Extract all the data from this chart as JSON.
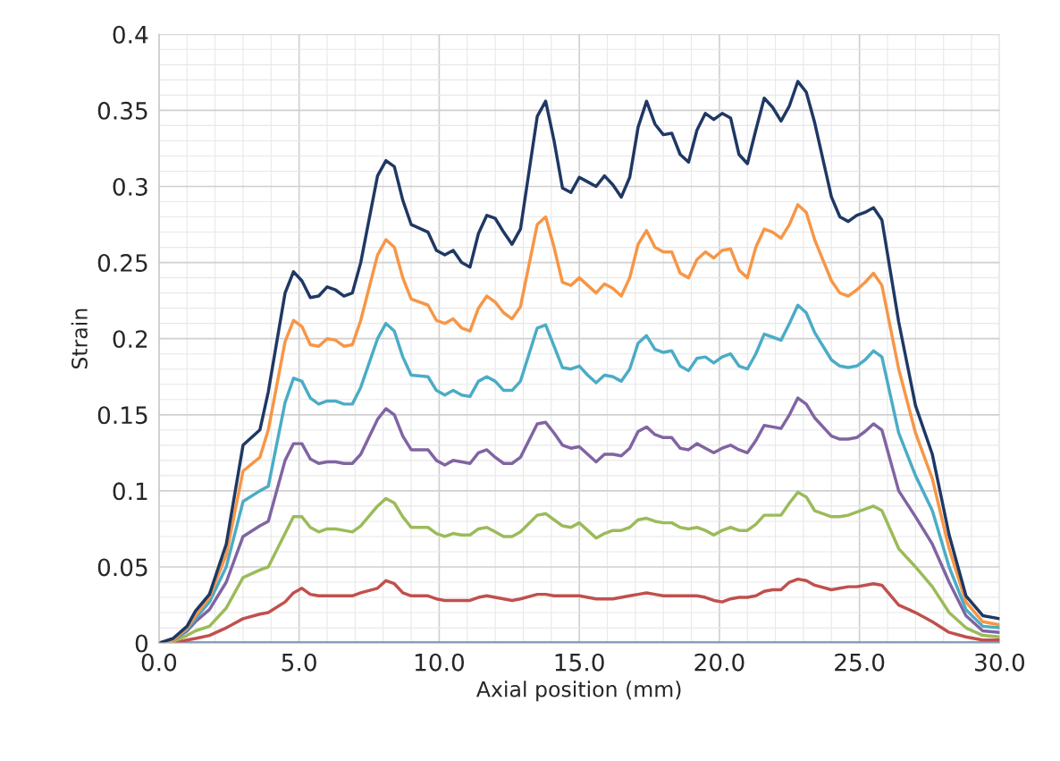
{
  "chart_data": {
    "type": "line",
    "xlabel": "Axial position (mm)",
    "ylabel": "Strain",
    "x": [
      0,
      0.5,
      1.0,
      1.3,
      1.8,
      2.4,
      3.0,
      3.6,
      3.9,
      4.5,
      4.8,
      5.1,
      5.4,
      5.7,
      6.0,
      6.3,
      6.6,
      6.9,
      7.2,
      7.8,
      8.1,
      8.4,
      8.7,
      9.0,
      9.6,
      9.9,
      10.2,
      10.5,
      10.8,
      11.1,
      11.4,
      11.7,
      12.0,
      12.3,
      12.6,
      12.9,
      13.5,
      13.8,
      14.1,
      14.4,
      14.7,
      15.0,
      15.3,
      15.6,
      15.9,
      16.2,
      16.5,
      16.8,
      17.1,
      17.4,
      17.7,
      18.0,
      18.3,
      18.6,
      18.9,
      19.2,
      19.5,
      19.8,
      20.1,
      20.4,
      20.7,
      21.0,
      21.3,
      21.6,
      21.9,
      22.2,
      22.5,
      22.8,
      23.1,
      23.4,
      24.0,
      24.3,
      24.6,
      24.9,
      25.2,
      25.5,
      25.8,
      26.4,
      27.0,
      27.6,
      28.2,
      28.8,
      29.4,
      30.0
    ],
    "series": [
      {
        "color": "#4f81bd",
        "x": [
          0,
          30
        ],
        "values": [
          0,
          0
        ]
      },
      {
        "color": "#c0504d",
        "values": [
          0,
          0,
          0.002,
          0.003,
          0.005,
          0.01,
          0.016,
          0.019,
          0.02,
          0.027,
          0.033,
          0.036,
          0.032,
          0.031,
          0.031,
          0.031,
          0.031,
          0.031,
          0.033,
          0.036,
          0.041,
          0.039,
          0.033,
          0.031,
          0.031,
          0.029,
          0.028,
          0.028,
          0.028,
          0.028,
          0.03,
          0.031,
          0.03,
          0.029,
          0.028,
          0.029,
          0.032,
          0.032,
          0.031,
          0.031,
          0.031,
          0.031,
          0.03,
          0.029,
          0.029,
          0.029,
          0.03,
          0.031,
          0.032,
          0.033,
          0.032,
          0.031,
          0.031,
          0.031,
          0.031,
          0.031,
          0.03,
          0.028,
          0.027,
          0.029,
          0.03,
          0.03,
          0.031,
          0.034,
          0.035,
          0.035,
          0.04,
          0.042,
          0.041,
          0.038,
          0.035,
          0.036,
          0.037,
          0.037,
          0.038,
          0.039,
          0.038,
          0.025,
          0.02,
          0.014,
          0.007,
          0.004,
          0.002,
          0.002
        ]
      },
      {
        "color": "#9bbb59",
        "values": [
          0,
          0.001,
          0.005,
          0.008,
          0.011,
          0.023,
          0.043,
          0.048,
          0.05,
          0.072,
          0.083,
          0.083,
          0.076,
          0.073,
          0.075,
          0.075,
          0.074,
          0.073,
          0.077,
          0.09,
          0.095,
          0.092,
          0.083,
          0.076,
          0.076,
          0.072,
          0.07,
          0.072,
          0.071,
          0.071,
          0.075,
          0.076,
          0.073,
          0.07,
          0.07,
          0.073,
          0.084,
          0.085,
          0.081,
          0.077,
          0.076,
          0.079,
          0.074,
          0.069,
          0.072,
          0.074,
          0.074,
          0.076,
          0.081,
          0.082,
          0.08,
          0.079,
          0.079,
          0.076,
          0.075,
          0.076,
          0.074,
          0.071,
          0.074,
          0.076,
          0.074,
          0.074,
          0.078,
          0.084,
          0.084,
          0.084,
          0.092,
          0.099,
          0.096,
          0.087,
          0.083,
          0.083,
          0.084,
          0.086,
          0.088,
          0.09,
          0.087,
          0.062,
          0.05,
          0.037,
          0.02,
          0.01,
          0.005,
          0.004
        ]
      },
      {
        "color": "#8064a2",
        "values": [
          0,
          0.002,
          0.008,
          0.014,
          0.022,
          0.04,
          0.07,
          0.077,
          0.08,
          0.12,
          0.131,
          0.131,
          0.121,
          0.118,
          0.119,
          0.119,
          0.118,
          0.118,
          0.124,
          0.147,
          0.154,
          0.15,
          0.136,
          0.127,
          0.127,
          0.12,
          0.117,
          0.12,
          0.119,
          0.118,
          0.125,
          0.127,
          0.122,
          0.118,
          0.118,
          0.122,
          0.144,
          0.145,
          0.138,
          0.13,
          0.128,
          0.129,
          0.124,
          0.119,
          0.124,
          0.124,
          0.123,
          0.128,
          0.139,
          0.142,
          0.137,
          0.135,
          0.135,
          0.128,
          0.127,
          0.131,
          0.128,
          0.125,
          0.128,
          0.13,
          0.127,
          0.125,
          0.133,
          0.143,
          0.142,
          0.141,
          0.15,
          0.161,
          0.157,
          0.148,
          0.136,
          0.134,
          0.134,
          0.135,
          0.139,
          0.144,
          0.14,
          0.1,
          0.083,
          0.065,
          0.04,
          0.018,
          0.008,
          0.007
        ]
      },
      {
        "color": "#4bacc6",
        "values": [
          0,
          0.002,
          0.009,
          0.016,
          0.027,
          0.05,
          0.093,
          0.1,
          0.103,
          0.158,
          0.174,
          0.172,
          0.161,
          0.157,
          0.159,
          0.159,
          0.157,
          0.157,
          0.168,
          0.2,
          0.21,
          0.205,
          0.188,
          0.176,
          0.175,
          0.166,
          0.163,
          0.166,
          0.163,
          0.162,
          0.172,
          0.175,
          0.172,
          0.166,
          0.166,
          0.172,
          0.207,
          0.209,
          0.195,
          0.181,
          0.18,
          0.182,
          0.176,
          0.171,
          0.176,
          0.175,
          0.172,
          0.18,
          0.197,
          0.202,
          0.193,
          0.191,
          0.192,
          0.182,
          0.179,
          0.187,
          0.188,
          0.184,
          0.188,
          0.19,
          0.182,
          0.18,
          0.19,
          0.203,
          0.201,
          0.199,
          0.21,
          0.222,
          0.217,
          0.204,
          0.186,
          0.182,
          0.181,
          0.182,
          0.186,
          0.192,
          0.188,
          0.138,
          0.11,
          0.087,
          0.05,
          0.022,
          0.011,
          0.01
        ]
      },
      {
        "color": "#f79646",
        "values": [
          0,
          0.002,
          0.01,
          0.018,
          0.03,
          0.058,
          0.113,
          0.122,
          0.14,
          0.198,
          0.212,
          0.208,
          0.196,
          0.195,
          0.2,
          0.199,
          0.195,
          0.196,
          0.212,
          0.255,
          0.265,
          0.26,
          0.24,
          0.226,
          0.222,
          0.212,
          0.21,
          0.213,
          0.207,
          0.205,
          0.22,
          0.228,
          0.224,
          0.217,
          0.213,
          0.221,
          0.275,
          0.28,
          0.26,
          0.237,
          0.235,
          0.24,
          0.235,
          0.23,
          0.236,
          0.233,
          0.228,
          0.24,
          0.262,
          0.271,
          0.26,
          0.257,
          0.257,
          0.243,
          0.24,
          0.252,
          0.257,
          0.253,
          0.258,
          0.259,
          0.245,
          0.24,
          0.26,
          0.272,
          0.27,
          0.266,
          0.275,
          0.288,
          0.283,
          0.265,
          0.238,
          0.23,
          0.228,
          0.232,
          0.237,
          0.243,
          0.235,
          0.18,
          0.138,
          0.108,
          0.062,
          0.027,
          0.014,
          0.012
        ]
      },
      {
        "color": "#1f3864",
        "values": [
          0,
          0.003,
          0.011,
          0.021,
          0.032,
          0.065,
          0.13,
          0.14,
          0.165,
          0.23,
          0.244,
          0.238,
          0.227,
          0.228,
          0.234,
          0.232,
          0.228,
          0.23,
          0.25,
          0.307,
          0.317,
          0.313,
          0.291,
          0.275,
          0.27,
          0.258,
          0.255,
          0.258,
          0.25,
          0.247,
          0.269,
          0.281,
          0.279,
          0.27,
          0.262,
          0.272,
          0.346,
          0.356,
          0.33,
          0.299,
          0.296,
          0.306,
          0.303,
          0.3,
          0.307,
          0.301,
          0.293,
          0.306,
          0.339,
          0.356,
          0.341,
          0.334,
          0.335,
          0.321,
          0.316,
          0.337,
          0.348,
          0.344,
          0.348,
          0.345,
          0.321,
          0.315,
          0.337,
          0.358,
          0.352,
          0.343,
          0.353,
          0.369,
          0.362,
          0.342,
          0.293,
          0.28,
          0.277,
          0.281,
          0.283,
          0.286,
          0.278,
          0.211,
          0.156,
          0.124,
          0.071,
          0.031,
          0.018,
          0.016
        ]
      }
    ],
    "xlim": [
      0,
      30
    ],
    "xticks": [
      {
        "value": 0,
        "label": "0.0"
      },
      {
        "value": 5,
        "label": "5.0"
      },
      {
        "value": 10,
        "label": "10.0"
      },
      {
        "value": 15,
        "label": "15.0"
      },
      {
        "value": 20,
        "label": "20.0"
      },
      {
        "value": 25,
        "label": "25.0"
      },
      {
        "value": 30,
        "label": "30.0"
      }
    ],
    "ylim": [
      0,
      0.4
    ],
    "yticks": [
      0,
      0.05,
      0.1,
      0.15,
      0.2,
      0.25,
      0.3,
      0.35,
      0.4
    ],
    "grid": true,
    "legend": false,
    "marker": "none",
    "line_style": "solid"
  }
}
